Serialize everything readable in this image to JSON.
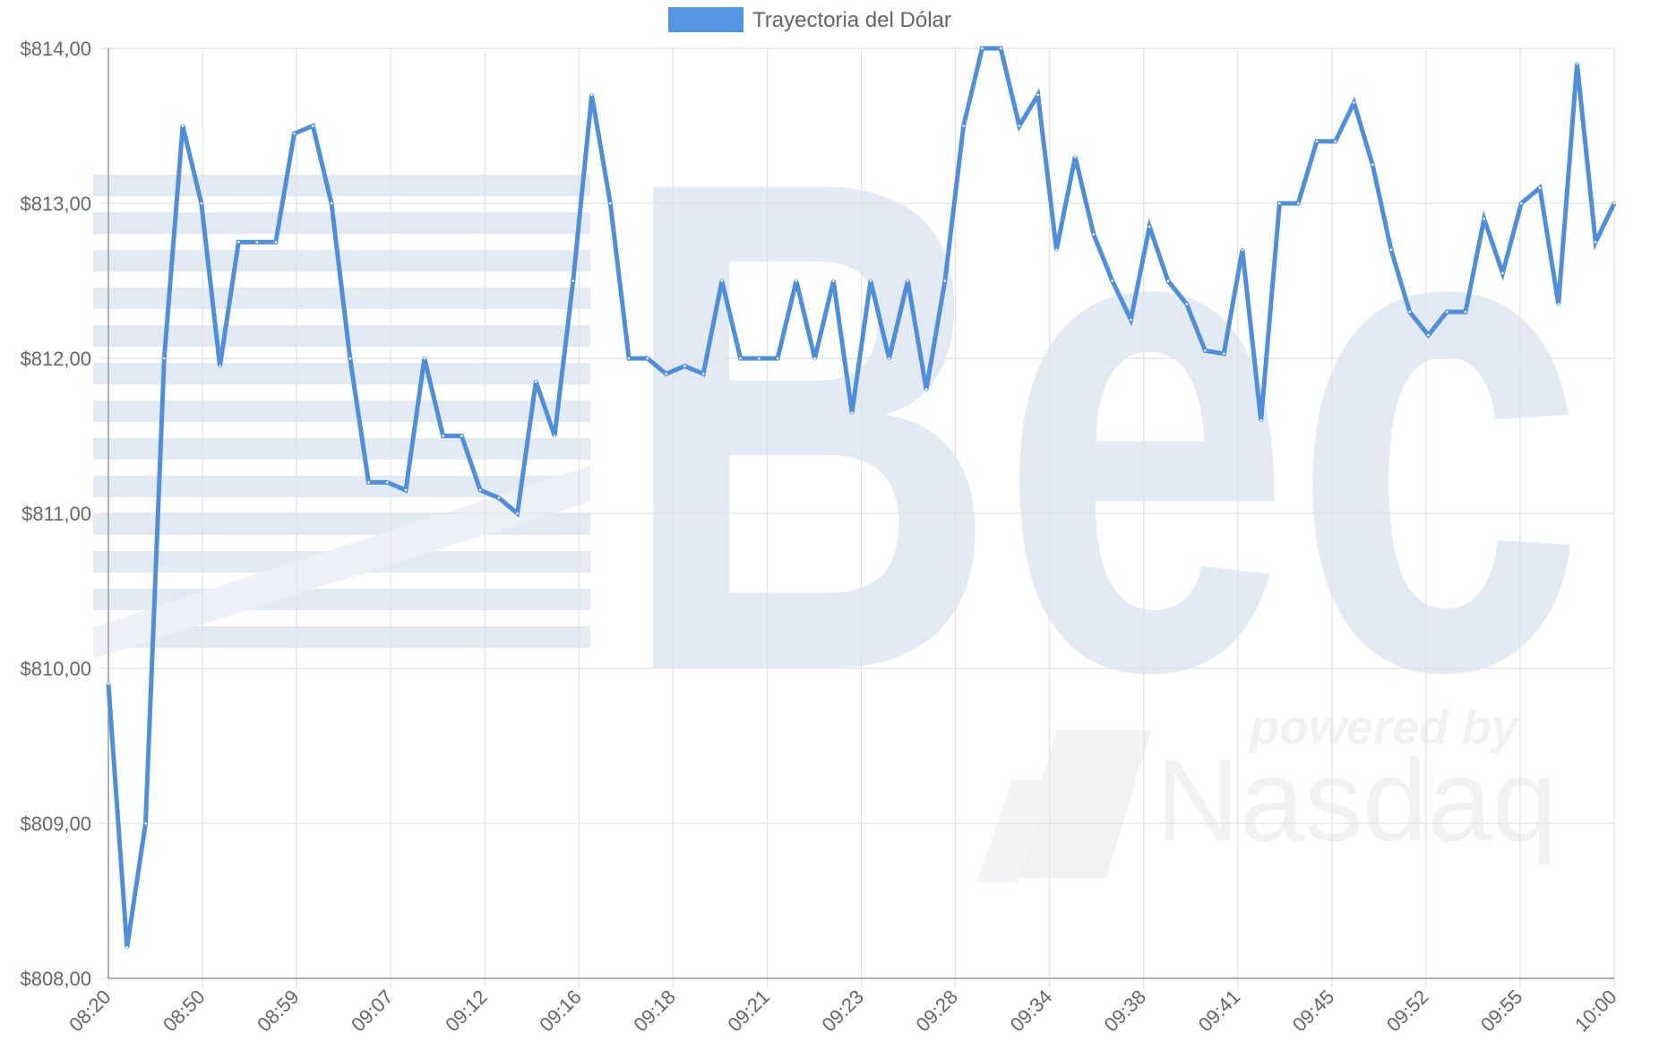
{
  "watermark": {
    "brand": "Bec",
    "powered_by": "powered by",
    "partner": "Nasdaq"
  },
  "colors": {
    "line": "#4d8fdc",
    "legend_box": "#5596e3",
    "grid": "#e1e1e1",
    "axis": "#999999",
    "text": "#666666",
    "watermark": "#e3eaf3"
  },
  "chart_data": {
    "type": "line",
    "legend": {
      "position": "top-center"
    },
    "grid": true,
    "ylim": [
      808,
      814
    ],
    "yticks": [
      "$808,00",
      "$809,00",
      "$810,00",
      "$811,00",
      "$812,00",
      "$813,00",
      "$814,00"
    ],
    "xtick_labels": [
      "08:20",
      "08:50",
      "08:59",
      "09:07",
      "09:12",
      "09:16",
      "09:18",
      "09:21",
      "09:23",
      "09:28",
      "09:34",
      "09:38",
      "09:41",
      "09:45",
      "09:52",
      "09:55",
      "10:00"
    ],
    "series": [
      {
        "name": "Trayectoria del Dólar",
        "values": [
          809.9,
          808.2,
          809.0,
          812.0,
          813.5,
          813.0,
          811.95,
          812.75,
          812.75,
          812.75,
          813.45,
          813.5,
          813.0,
          812.0,
          811.2,
          811.2,
          811.15,
          812.0,
          811.5,
          811.5,
          811.15,
          811.1,
          811.0,
          811.85,
          811.5,
          812.5,
          813.7,
          813.0,
          812.0,
          812.0,
          811.9,
          811.95,
          811.9,
          812.5,
          812.0,
          812.0,
          812.0,
          812.5,
          812.0,
          812.5,
          811.65,
          812.5,
          812.0,
          812.5,
          811.8,
          812.5,
          813.5,
          814.0,
          814.0,
          813.5,
          813.7,
          812.7,
          813.3,
          812.8,
          812.5,
          812.25,
          812.85,
          812.5,
          812.35,
          812.05,
          812.03,
          812.7,
          811.6,
          813.0,
          813.0,
          813.4,
          813.4,
          813.65,
          813.25,
          812.7,
          812.3,
          812.15,
          812.3,
          812.3,
          812.9,
          812.55,
          813.0,
          813.1,
          812.35,
          813.9,
          812.75,
          813.0
        ]
      }
    ]
  }
}
